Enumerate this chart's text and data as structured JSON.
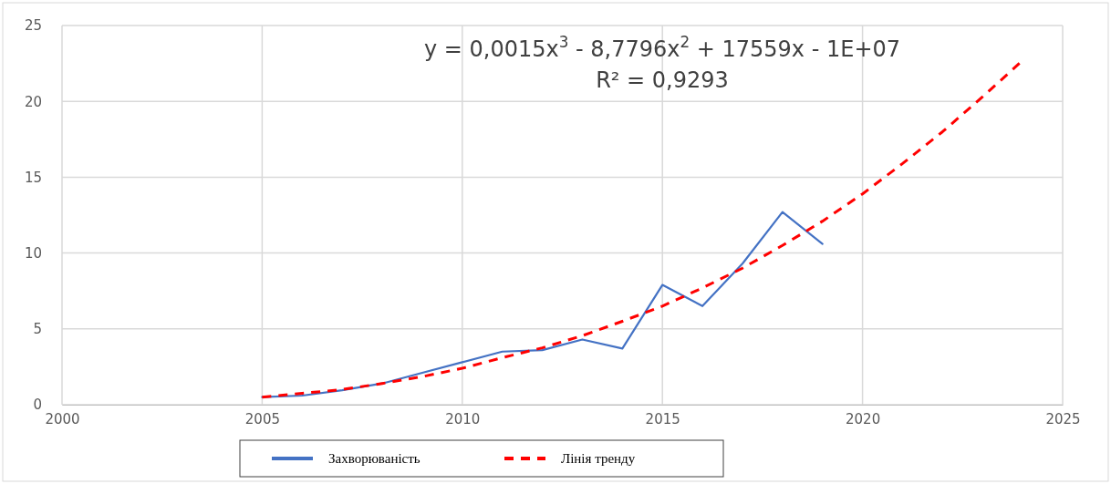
{
  "chart_data": {
    "type": "line",
    "xlim": [
      2000,
      2025
    ],
    "xticks": [
      2000,
      2005,
      2010,
      2015,
      2020,
      2025
    ],
    "ylim": [
      0,
      25
    ],
    "yticks": [
      0,
      5,
      10,
      15,
      20,
      25
    ],
    "grid": true,
    "legend": "bottom",
    "marker": "none",
    "series": [
      {
        "name": "Захворюваність",
        "color": "#4472c4",
        "line_style": "solid",
        "x": [
          2005,
          2006,
          2007,
          2008,
          2009,
          2010,
          2011,
          2012,
          2013,
          2014,
          2015,
          2016,
          2017,
          2018,
          2019
        ],
        "values": [
          0.5,
          0.6,
          0.95,
          1.4,
          2.1,
          2.8,
          3.5,
          3.6,
          4.3,
          3.7,
          7.9,
          6.5,
          9.3,
          12.7,
          10.6
        ]
      },
      {
        "name": "Лінія тренду",
        "type": "line",
        "color": "#ff0000",
        "line_style": "dashed",
        "x": [
          2005,
          2006,
          2007,
          2008,
          2009,
          2010,
          2011,
          2012,
          2013,
          2014,
          2015,
          2016,
          2017,
          2018,
          2019,
          2020,
          2021,
          2022,
          2023,
          2024
        ],
        "values": [
          0.5,
          0.75,
          1.0,
          1.4,
          1.85,
          2.4,
          3.1,
          3.75,
          4.55,
          5.5,
          6.5,
          7.7,
          9.0,
          10.5,
          12.1,
          13.9,
          15.9,
          18.0,
          20.3,
          22.7
        ]
      }
    ],
    "annotations": [
      "y = 0,0015x$^{3}$ - 8,7796x$^{2}$ + 17559x - 1E+07",
      "R² = 0,9293"
    ]
  }
}
